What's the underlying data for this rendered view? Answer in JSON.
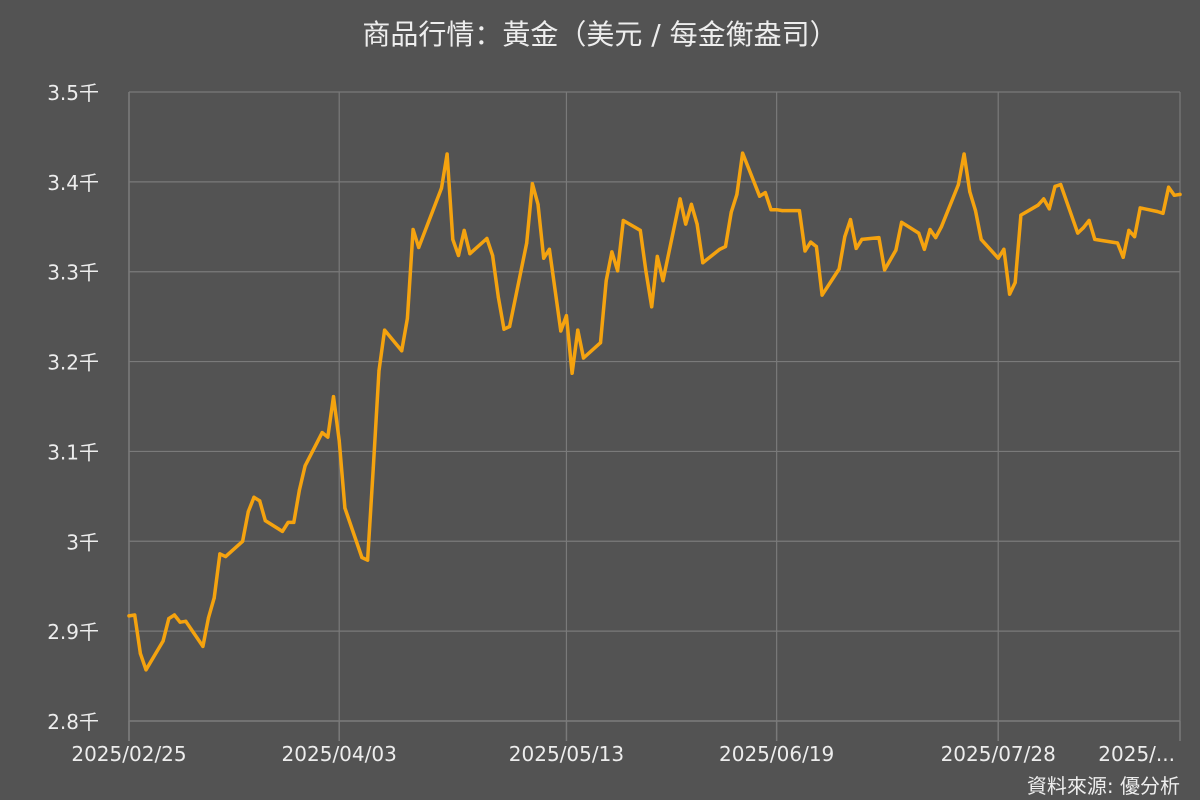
{
  "chart_data": {
    "type": "line",
    "title": "商品行情：黃金（美元 / 每金衡盎司）",
    "source": "資料來源: 優分析",
    "xlabel": "",
    "ylabel": "",
    "ylim": [
      2800,
      3500
    ],
    "yticks": [
      {
        "value": 2800,
        "label": "2.8千"
      },
      {
        "value": 2900,
        "label": "2.9千"
      },
      {
        "value": 3000,
        "label": "3千"
      },
      {
        "value": 3100,
        "label": "3.1千"
      },
      {
        "value": 3200,
        "label": "3.2千"
      },
      {
        "value": 3300,
        "label": "3.3千"
      },
      {
        "value": 3400,
        "label": "3.4千"
      },
      {
        "value": 3500,
        "label": "3.5千"
      }
    ],
    "xlim": [
      "2025-02-25",
      "2025-08-29"
    ],
    "xticks": [
      {
        "value": "2025-02-25",
        "label": "2025/02/25"
      },
      {
        "value": "2025-04-03",
        "label": "2025/04/03"
      },
      {
        "value": "2025-05-13",
        "label": "2025/05/13"
      },
      {
        "value": "2025-06-19",
        "label": "2025/06/19"
      },
      {
        "value": "2025-07-28",
        "label": "2025/07/28"
      },
      {
        "value": "2025-08-29",
        "label": "2025/..."
      }
    ],
    "grid": true,
    "colors": {
      "line": "#F5A30F",
      "grid": "#7A7A7A",
      "text": "#EDEDED",
      "background": "#535353"
    },
    "series": [
      {
        "values": [
          [
            "2025-02-25",
            2917
          ],
          [
            "2025-02-26",
            2918
          ],
          [
            "2025-02-27",
            2875
          ],
          [
            "2025-02-28",
            2857
          ],
          [
            "2025-03-03",
            2889
          ],
          [
            "2025-03-04",
            2914
          ],
          [
            "2025-03-05",
            2918
          ],
          [
            "2025-03-06",
            2910
          ],
          [
            "2025-03-07",
            2911
          ],
          [
            "2025-03-10",
            2883
          ],
          [
            "2025-03-11",
            2915
          ],
          [
            "2025-03-12",
            2937
          ],
          [
            "2025-03-13",
            2986
          ],
          [
            "2025-03-14",
            2983
          ],
          [
            "2025-03-17",
            3000
          ],
          [
            "2025-03-18",
            3033
          ],
          [
            "2025-03-19",
            3049
          ],
          [
            "2025-03-20",
            3045
          ],
          [
            "2025-03-21",
            3023
          ],
          [
            "2025-03-24",
            3011
          ],
          [
            "2025-03-25",
            3021
          ],
          [
            "2025-03-26",
            3021
          ],
          [
            "2025-03-27",
            3057
          ],
          [
            "2025-03-28",
            3084
          ],
          [
            "2025-03-31",
            3121
          ],
          [
            "2025-04-01",
            3116
          ],
          [
            "2025-04-02",
            3161
          ],
          [
            "2025-04-03",
            3112
          ],
          [
            "2025-04-04",
            3037
          ],
          [
            "2025-04-07",
            2982
          ],
          [
            "2025-04-08",
            2979
          ],
          [
            "2025-04-09",
            3082
          ],
          [
            "2025-04-10",
            3190
          ],
          [
            "2025-04-11",
            3235
          ],
          [
            "2025-04-14",
            3212
          ],
          [
            "2025-04-15",
            3248
          ],
          [
            "2025-04-16",
            3347
          ],
          [
            "2025-04-17",
            3327
          ],
          [
            "2025-04-21",
            3393
          ],
          [
            "2025-04-22",
            3431
          ],
          [
            "2025-04-23",
            3336
          ],
          [
            "2025-04-24",
            3318
          ],
          [
            "2025-04-25",
            3346
          ],
          [
            "2025-04-26",
            3320
          ],
          [
            "2025-04-29",
            3337
          ],
          [
            "2025-04-30",
            3318
          ],
          [
            "2025-05-01",
            3272
          ],
          [
            "2025-05-02",
            3236
          ],
          [
            "2025-05-03",
            3239
          ],
          [
            "2025-05-06",
            3332
          ],
          [
            "2025-05-07",
            3398
          ],
          [
            "2025-05-08",
            3375
          ],
          [
            "2025-05-09",
            3315
          ],
          [
            "2025-05-10",
            3325
          ],
          [
            "2025-05-12",
            3234
          ],
          [
            "2025-05-13",
            3251
          ],
          [
            "2025-05-14",
            3187
          ],
          [
            "2025-05-15",
            3235
          ],
          [
            "2025-05-16",
            3204
          ],
          [
            "2025-05-19",
            3221
          ],
          [
            "2025-05-20",
            3290
          ],
          [
            "2025-05-21",
            3322
          ],
          [
            "2025-05-22",
            3301
          ],
          [
            "2025-05-23",
            3357
          ],
          [
            "2025-05-26",
            3346
          ],
          [
            "2025-05-27",
            3300
          ],
          [
            "2025-05-28",
            3261
          ],
          [
            "2025-05-29",
            3317
          ],
          [
            "2025-05-30",
            3290
          ],
          [
            "2025-06-02",
            3381
          ],
          [
            "2025-06-03",
            3353
          ],
          [
            "2025-06-04",
            3375
          ],
          [
            "2025-06-05",
            3353
          ],
          [
            "2025-06-06",
            3310
          ],
          [
            "2025-06-09",
            3325
          ],
          [
            "2025-06-10",
            3328
          ],
          [
            "2025-06-11",
            3366
          ],
          [
            "2025-06-12",
            3386
          ],
          [
            "2025-06-13",
            3432
          ],
          [
            "2025-06-16",
            3384
          ],
          [
            "2025-06-17",
            3388
          ],
          [
            "2025-06-18",
            3369
          ],
          [
            "2025-06-19",
            3369
          ],
          [
            "2025-06-20",
            3368
          ],
          [
            "2025-06-23",
            3368
          ],
          [
            "2025-06-24",
            3323
          ],
          [
            "2025-06-25",
            3333
          ],
          [
            "2025-06-26",
            3328
          ],
          [
            "2025-06-27",
            3274
          ],
          [
            "2025-06-30",
            3303
          ],
          [
            "2025-07-01",
            3339
          ],
          [
            "2025-07-02",
            3358
          ],
          [
            "2025-07-03",
            3326
          ],
          [
            "2025-07-04",
            3336
          ],
          [
            "2025-07-07",
            3338
          ],
          [
            "2025-07-08",
            3302
          ],
          [
            "2025-07-10",
            3324
          ],
          [
            "2025-07-11",
            3355
          ],
          [
            "2025-07-14",
            3343
          ],
          [
            "2025-07-15",
            3325
          ],
          [
            "2025-07-16",
            3347
          ],
          [
            "2025-07-17",
            3338
          ],
          [
            "2025-07-18",
            3350
          ],
          [
            "2025-07-21",
            3397
          ],
          [
            "2025-07-22",
            3431
          ],
          [
            "2025-07-23",
            3389
          ],
          [
            "2025-07-24",
            3368
          ],
          [
            "2025-07-25",
            3336
          ],
          [
            "2025-07-28",
            3315
          ],
          [
            "2025-07-29",
            3325
          ],
          [
            "2025-07-30",
            3275
          ],
          [
            "2025-07-31",
            3288
          ],
          [
            "2025-08-01",
            3363
          ],
          [
            "2025-08-04",
            3374
          ],
          [
            "2025-08-05",
            3381
          ],
          [
            "2025-08-06",
            3370
          ],
          [
            "2025-08-07",
            3395
          ],
          [
            "2025-08-08",
            3397
          ],
          [
            "2025-08-11",
            3343
          ],
          [
            "2025-08-12",
            3349
          ],
          [
            "2025-08-13",
            3357
          ],
          [
            "2025-08-14",
            3336
          ],
          [
            "2025-08-18",
            3332
          ],
          [
            "2025-08-19",
            3316
          ],
          [
            "2025-08-20",
            3346
          ],
          [
            "2025-08-21",
            3339
          ],
          [
            "2025-08-22",
            3371
          ],
          [
            "2025-08-25",
            3367
          ],
          [
            "2025-08-26",
            3365
          ],
          [
            "2025-08-27",
            3394
          ],
          [
            "2025-08-28",
            3385
          ],
          [
            "2025-08-29",
            3386
          ]
        ]
      }
    ]
  }
}
